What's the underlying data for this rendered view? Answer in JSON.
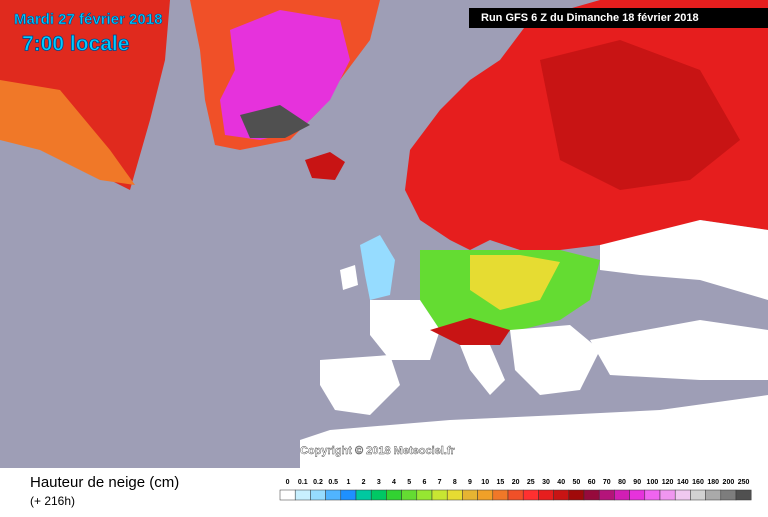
{
  "header": {
    "date": "Mardi 27 février 2018",
    "time": "7:00 locale",
    "run": "Run GFS 6 Z du Dimanche 18 février 2018",
    "copyright": "Copyright © 2018 Meteociel.fr"
  },
  "footer": {
    "title": "Hauteur de neige (cm)",
    "lead": "(+ 216h)"
  },
  "legend": {
    "items": [
      {
        "label": "0",
        "color": "#ffffff"
      },
      {
        "label": "0.1",
        "color": "#c8f0ff"
      },
      {
        "label": "0.2",
        "color": "#96dcff"
      },
      {
        "label": "0.5",
        "color": "#50b4ff"
      },
      {
        "label": "1",
        "color": "#1e90ff"
      },
      {
        "label": "2",
        "color": "#00c8a0"
      },
      {
        "label": "3",
        "color": "#00c864"
      },
      {
        "label": "4",
        "color": "#32d232"
      },
      {
        "label": "5",
        "color": "#64dc32"
      },
      {
        "label": "6",
        "color": "#96e632"
      },
      {
        "label": "7",
        "color": "#c8e632"
      },
      {
        "label": "8",
        "color": "#e6dc32"
      },
      {
        "label": "9",
        "color": "#e6b432"
      },
      {
        "label": "10",
        "color": "#f0a028"
      },
      {
        "label": "15",
        "color": "#f07828"
      },
      {
        "label": "20",
        "color": "#f05028"
      },
      {
        "label": "25",
        "color": "#ff3030"
      },
      {
        "label": "30",
        "color": "#e61e1e"
      },
      {
        "label": "40",
        "color": "#c81414"
      },
      {
        "label": "50",
        "color": "#a00a0a"
      },
      {
        "label": "60",
        "color": "#960a3c"
      },
      {
        "label": "70",
        "color": "#b4147a"
      },
      {
        "label": "80",
        "color": "#d21eb4"
      },
      {
        "label": "90",
        "color": "#e632dc"
      },
      {
        "label": "100",
        "color": "#f064f0"
      },
      {
        "label": "120",
        "color": "#f096f0"
      },
      {
        "label": "140",
        "color": "#f0c8f0"
      },
      {
        "label": "160",
        "color": "#d2d2d2"
      },
      {
        "label": "180",
        "color": "#aaaaaa"
      },
      {
        "label": "200",
        "color": "#7d7d7d"
      },
      {
        "label": "250",
        "color": "#505050"
      }
    ]
  }
}
